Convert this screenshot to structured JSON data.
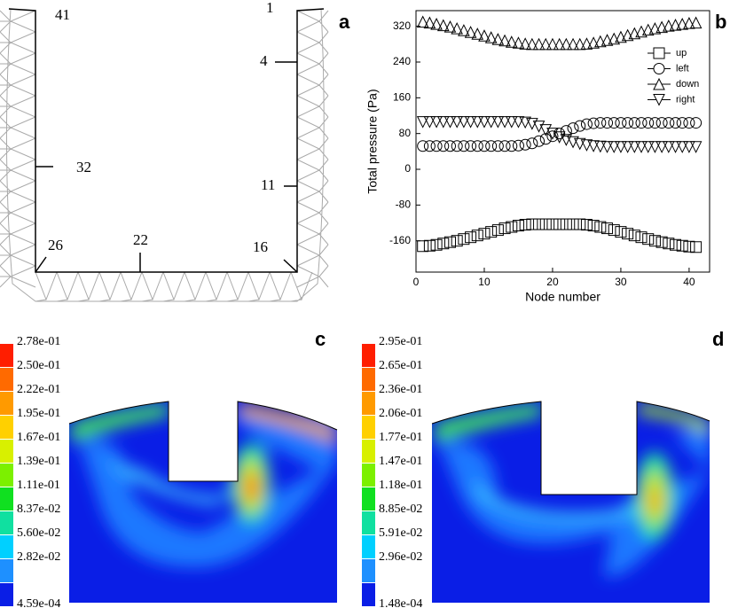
{
  "panel_a": {
    "label": "a",
    "node_labels": [
      "41",
      "1",
      "4",
      "32",
      "11",
      "26",
      "22",
      "16"
    ]
  },
  "chart_data": {
    "type": "scatter",
    "panel_label": "b",
    "x_label": "Node number",
    "y_label": "Total pressure (Pa)",
    "x": [
      1,
      2,
      3,
      4,
      5,
      6,
      7,
      8,
      9,
      10,
      11,
      12,
      13,
      14,
      15,
      16,
      17,
      18,
      19,
      20,
      21,
      22,
      23,
      24,
      25,
      26,
      27,
      28,
      29,
      30,
      31,
      32,
      33,
      34,
      35,
      36,
      37,
      38,
      39,
      40,
      41
    ],
    "series": [
      {
        "name": "up",
        "marker": "square",
        "color": "#000000",
        "values": [
          -172,
          -171,
          -169,
          -166,
          -163,
          -160,
          -156,
          -152,
          -148,
          -144,
          -140,
          -136,
          -132,
          -129,
          -126,
          -124,
          -123,
          -123,
          -123,
          -123,
          -123,
          -123,
          -123,
          -123,
          -124,
          -126,
          -129,
          -132,
          -136,
          -140,
          -144,
          -148,
          -152,
          -156,
          -160,
          -163,
          -166,
          -169,
          -171,
          -173,
          -174
        ]
      },
      {
        "name": "left",
        "marker": "circle",
        "color": "#000000",
        "values": [
          52,
          52,
          52,
          52,
          52,
          52,
          52,
          52,
          52,
          52,
          52,
          52,
          52,
          52,
          53,
          55,
          58,
          63,
          68,
          74,
          80,
          86,
          92,
          97,
          101,
          103,
          104,
          104,
          104,
          104,
          104,
          104,
          104,
          104,
          104,
          104,
          104,
          104,
          104,
          104,
          104
        ]
      },
      {
        "name": "down",
        "marker": "triangle-up",
        "color": "#000000",
        "values": [
          330,
          328,
          325,
          322,
          319,
          315,
          311,
          307,
          303,
          299,
          295,
          291,
          288,
          285,
          283,
          281,
          280,
          280,
          280,
          280,
          280,
          280,
          280,
          280,
          281,
          283,
          286,
          289,
          292,
          296,
          300,
          304,
          308,
          312,
          315,
          318,
          321,
          323,
          325,
          327,
          328
        ]
      },
      {
        "name": "right",
        "marker": "triangle-down",
        "color": "#000000",
        "values": [
          106,
          106,
          106,
          106,
          106,
          106,
          106,
          106,
          106,
          106,
          106,
          106,
          106,
          106,
          106,
          105,
          102,
          96,
          88,
          80,
          72,
          66,
          61,
          57,
          54,
          52,
          51,
          50,
          50,
          50,
          50,
          50,
          50,
          50,
          50,
          50,
          50,
          50,
          50,
          50,
          50
        ]
      }
    ],
    "xlim": [
      0,
      43
    ],
    "ylim": [
      -230,
      355
    ],
    "xticks": [
      0,
      10,
      20,
      30,
      40
    ],
    "yticks": [
      -160,
      -80,
      0,
      80,
      160,
      240,
      320
    ],
    "legend": "upper right"
  },
  "panel_c": {
    "label": "c",
    "colorbar": [
      "2.78e-01",
      "2.50e-01",
      "2.22e-01",
      "1.95e-01",
      "1.67e-01",
      "1.39e-01",
      "1.11e-01",
      "8.37e-02",
      "5.60e-02",
      "2.82e-02",
      "4.59e-04"
    ]
  },
  "panel_d": {
    "label": "d",
    "colorbar": [
      "2.95e-01",
      "2.65e-01",
      "2.36e-01",
      "2.06e-01",
      "1.77e-01",
      "1.47e-01",
      "1.18e-01",
      "8.85e-02",
      "5.91e-02",
      "2.96e-02",
      "1.48e-04"
    ]
  }
}
